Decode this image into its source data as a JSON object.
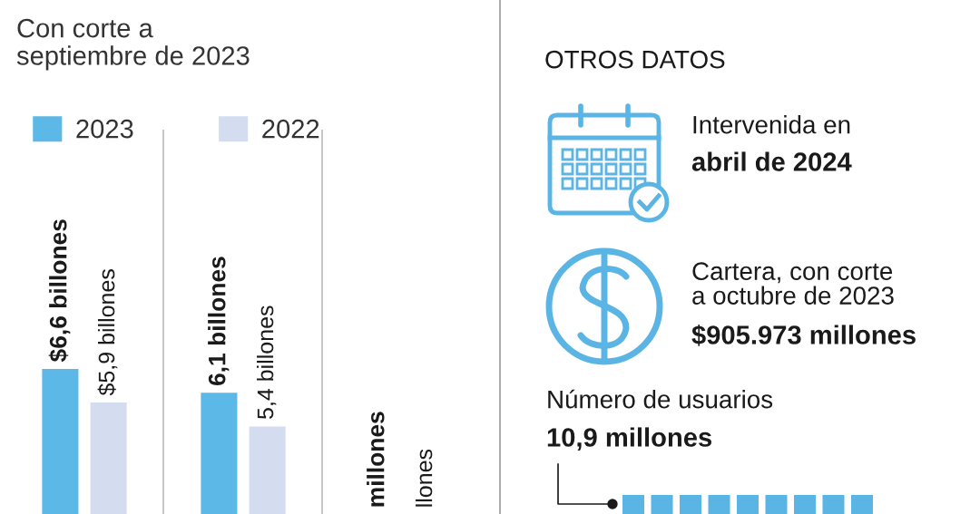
{
  "chart_data": [
    {
      "type": "bar",
      "title": "Con corte a\nseptiembre de 2023",
      "categories": [
        null,
        null
      ],
      "legend": "top left",
      "annotations": [
        "millones",
        "llones"
      ],
      "series": [
        {
          "name": "2023",
          "color": "#5cb8e6",
          "values": [
            6.6,
            6.1
          ],
          "value_labels": [
            "$6,6 billones",
            "6,1 billones"
          ]
        },
        {
          "name": "2022",
          "color": "#d4ddf0",
          "values": [
            5.9,
            5.4
          ],
          "value_labels": [
            "$5,9 billones",
            "5,4 billones"
          ]
        }
      ]
    },
    {
      "type": "other",
      "title": "OTROS DATOS",
      "annotations": [
        "Intervenida en",
        "abril de 2024",
        "Cartera, con corte\na octubre de 2023",
        "$905.973 millones",
        "Número de usuarios",
        "10,9 millones"
      ]
    }
  ]
}
